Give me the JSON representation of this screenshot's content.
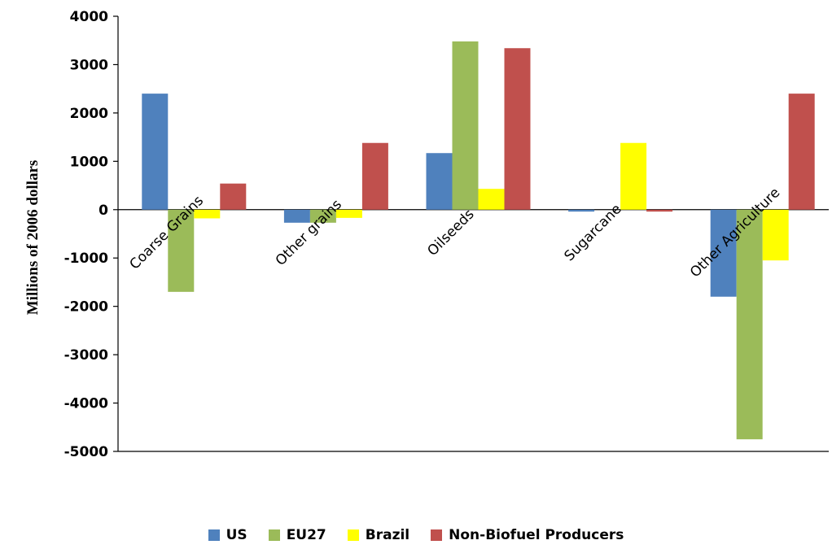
{
  "chart_data": {
    "type": "bar",
    "title": "",
    "xlabel": "",
    "ylabel": "Millions of 2006 dollars",
    "ylim": [
      -5000,
      4000
    ],
    "yticks": [
      4000,
      3000,
      2000,
      1000,
      0,
      -1000,
      -2000,
      -3000,
      -4000,
      -5000
    ],
    "grid": false,
    "legend_position": "bottom",
    "categories": [
      "Coarse Grains",
      "Other grains",
      "Oilseeds",
      "Sugarcane",
      "Other Agriculture"
    ],
    "series": [
      {
        "name": "US",
        "color": "#4f81bd",
        "values": [
          2400,
          -270,
          1170,
          -40,
          -1800
        ]
      },
      {
        "name": "EU27",
        "color": "#9bbb59",
        "values": [
          -1700,
          -270,
          3480,
          0,
          -4750
        ]
      },
      {
        "name": "Brazil",
        "color": "#ffff00",
        "values": [
          -180,
          -170,
          430,
          1380,
          -1050
        ]
      },
      {
        "name": "Non-Biofuel Producers",
        "color": "#c0504d",
        "values": [
          540,
          1380,
          3340,
          -40,
          2400
        ]
      }
    ]
  }
}
